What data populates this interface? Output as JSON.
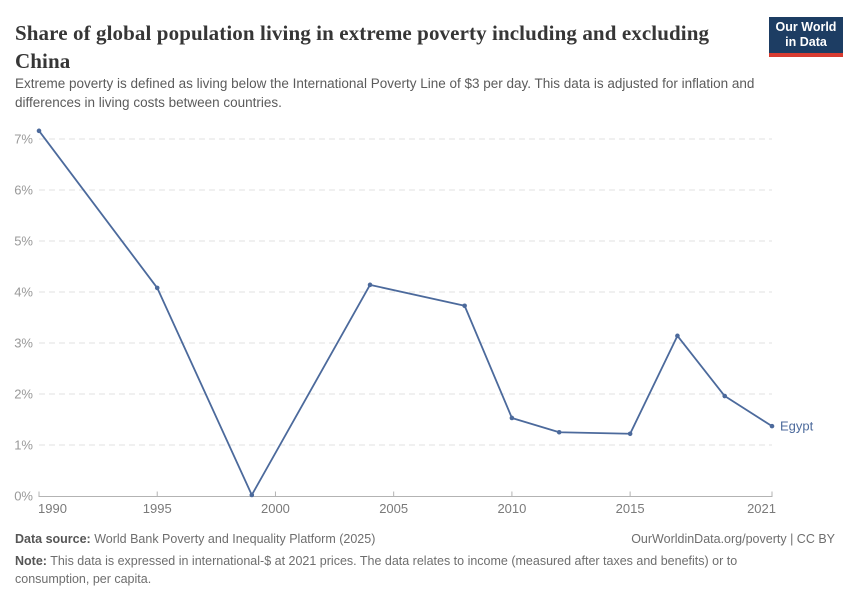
{
  "chart_data": {
    "type": "line",
    "title": "Share of global population living in extreme poverty including and excluding China",
    "subtitle": "Extreme poverty is defined as living below the International Poverty Line of $3 per day. This data is adjusted for inflation and differences in living costs between countries.",
    "x": [
      1990,
      1995,
      1999,
      2004,
      2008,
      2010,
      2012,
      2015,
      2017,
      2019,
      2021
    ],
    "series": [
      {
        "name": "Egypt",
        "color": "#4c6a9c",
        "values": [
          7.16,
          4.08,
          0.02,
          4.14,
          3.73,
          1.53,
          1.25,
          1.22,
          3.14,
          1.96,
          1.37
        ]
      }
    ],
    "xlabel": "",
    "ylabel": "",
    "xlim": [
      1990,
      2021
    ],
    "ylim": [
      0,
      7
    ],
    "xticks": [
      1990,
      1995,
      2000,
      2005,
      2010,
      2015,
      2021
    ],
    "xticklabels": [
      "1990",
      "1995",
      "2000",
      "2005",
      "2010",
      "2015",
      "2021"
    ],
    "yticks": [
      0,
      1,
      2,
      3,
      4,
      5,
      6,
      7
    ],
    "yticklabels": [
      "0%",
      "1%",
      "2%",
      "3%",
      "4%",
      "5%",
      "6%",
      "7%"
    ],
    "grid": "horizontal-dashed",
    "legend_position": "end-of-line-label",
    "end_label": "Egypt"
  },
  "logo": {
    "line1": "Our World",
    "line2": "in Data",
    "bg_color": "#1d3d63",
    "accent_color": "#d83c31"
  },
  "footer": {
    "datasource_label": "Data source:",
    "datasource_text": " World Bank Poverty and Inequality Platform (2025)",
    "rights": "OurWorldinData.org/poverty | CC BY",
    "note_label": "Note:",
    "note_text": " This data is expressed in international-$ at 2021 prices. The data relates to income (measured after taxes and benefits) or to consumption, per capita."
  }
}
